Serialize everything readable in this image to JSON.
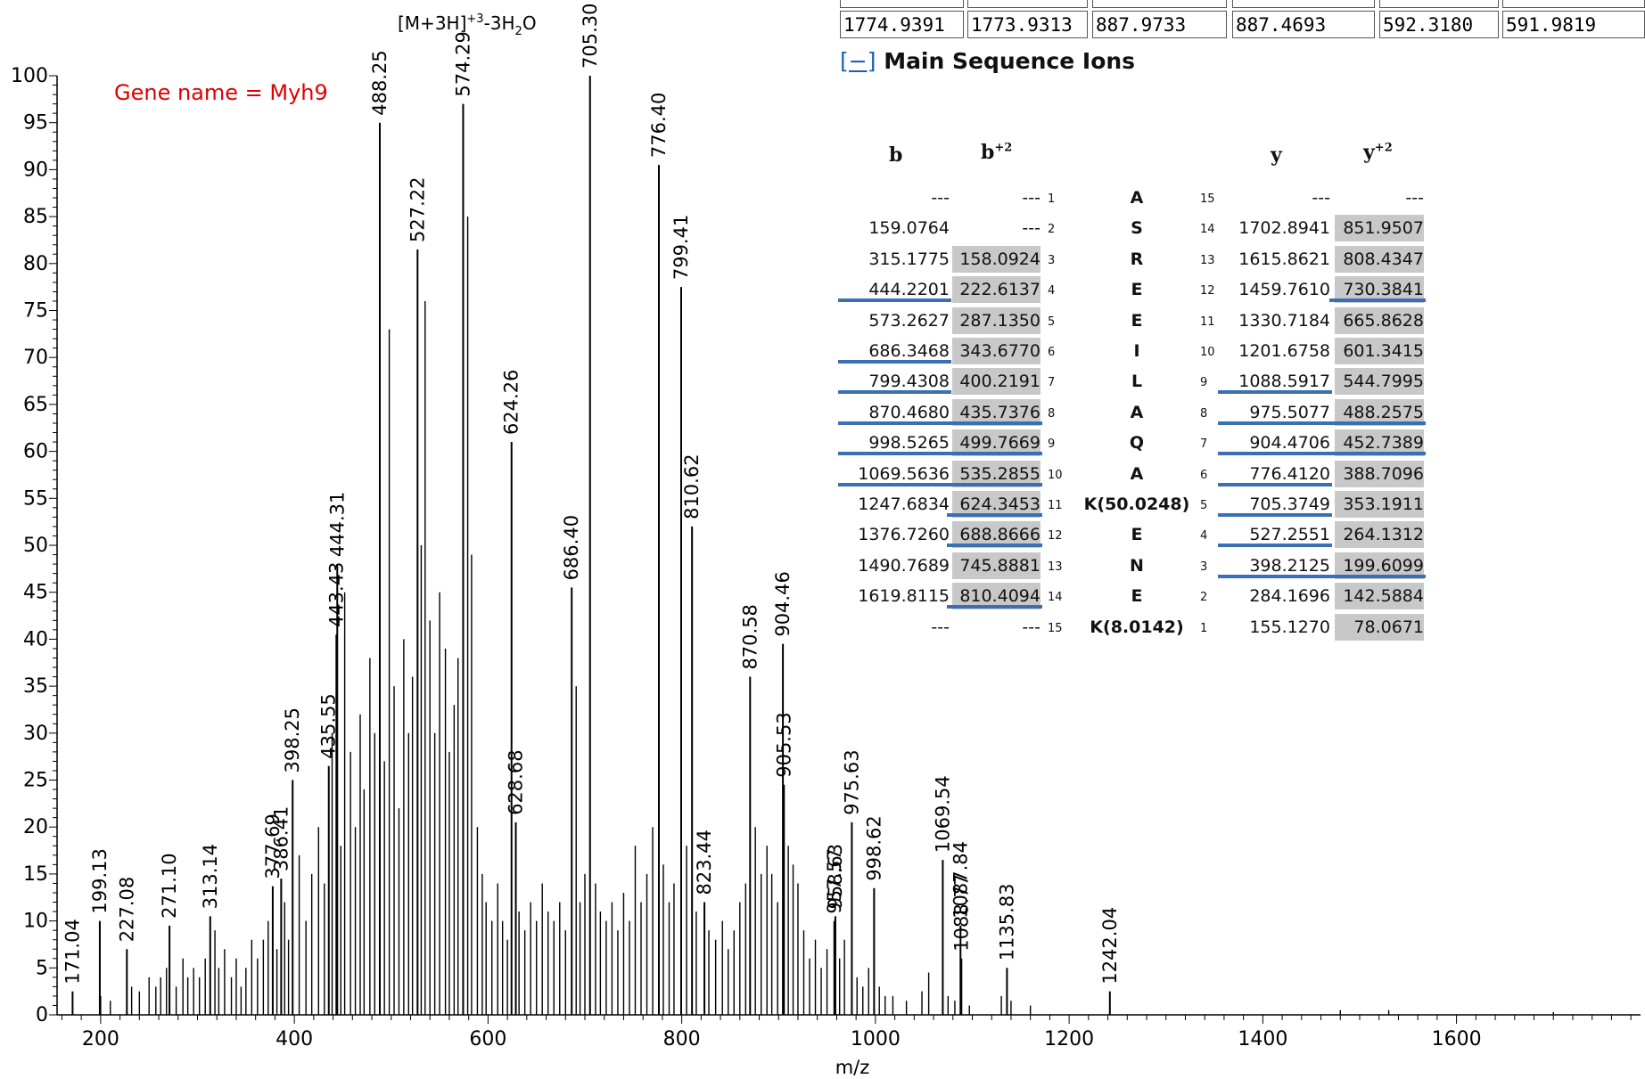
{
  "mass_strip": [
    "1774.9391",
    "1773.9313",
    "887.9733",
    "887.4693",
    "592.3180",
    "591.9819"
  ],
  "section": {
    "toggle": "[−]",
    "title": "Main Sequence Ions"
  },
  "ion_table": {
    "headers": {
      "b": "b",
      "b2": "b",
      "b2_sup": "+2",
      "y": "y",
      "y2": "y",
      "y2_sup": "+2"
    },
    "rows": [
      {
        "b": "---",
        "b2": "---",
        "i": "1",
        "aa": "A",
        "j": "15",
        "y": "---",
        "y2": "---",
        "b_u": false,
        "b2_u": false,
        "y_u": false,
        "y2_u": false,
        "b2_hl": false,
        "y2_hl": false
      },
      {
        "b": "159.0764",
        "b2": "---",
        "i": "2",
        "aa": "S",
        "j": "14",
        "y": "1702.8941",
        "y2": "851.9507",
        "b_u": false,
        "b2_u": false,
        "y_u": false,
        "y2_u": false,
        "b2_hl": false,
        "y2_hl": true
      },
      {
        "b": "315.1775",
        "b2": "158.0924",
        "i": "3",
        "aa": "R",
        "j": "13",
        "y": "1615.8621",
        "y2": "808.4347",
        "b_u": false,
        "b2_u": false,
        "y_u": false,
        "y2_u": false,
        "b2_hl": true,
        "y2_hl": true
      },
      {
        "b": "444.2201",
        "b2": "222.6137",
        "i": "4",
        "aa": "E",
        "j": "12",
        "y": "1459.7610",
        "y2": "730.3841",
        "b_u": true,
        "b2_u": false,
        "y_u": false,
        "y2_u": true,
        "b2_hl": true,
        "y2_hl": true
      },
      {
        "b": "573.2627",
        "b2": "287.1350",
        "i": "5",
        "aa": "E",
        "j": "11",
        "y": "1330.7184",
        "y2": "665.8628",
        "b_u": false,
        "b2_u": false,
        "y_u": false,
        "y2_u": false,
        "b2_hl": true,
        "y2_hl": true
      },
      {
        "b": "686.3468",
        "b2": "343.6770",
        "i": "6",
        "aa": "I",
        "j": "10",
        "y": "1201.6758",
        "y2": "601.3415",
        "b_u": true,
        "b2_u": false,
        "y_u": false,
        "y2_u": false,
        "b2_hl": true,
        "y2_hl": true
      },
      {
        "b": "799.4308",
        "b2": "400.2191",
        "i": "7",
        "aa": "L",
        "j": "9",
        "y": "1088.5917",
        "y2": "544.7995",
        "b_u": true,
        "b2_u": false,
        "y_u": true,
        "y2_u": false,
        "b2_hl": true,
        "y2_hl": true
      },
      {
        "b": "870.4680",
        "b2": "435.7376",
        "i": "8",
        "aa": "A",
        "j": "8",
        "y": "975.5077",
        "y2": "488.2575",
        "b_u": true,
        "b2_u": true,
        "y_u": true,
        "y2_u": true,
        "b2_hl": true,
        "y2_hl": true
      },
      {
        "b": "998.5265",
        "b2": "499.7669",
        "i": "9",
        "aa": "Q",
        "j": "7",
        "y": "904.4706",
        "y2": "452.7389",
        "b_u": true,
        "b2_u": true,
        "y_u": true,
        "y2_u": true,
        "b2_hl": true,
        "y2_hl": true
      },
      {
        "b": "1069.5636",
        "b2": "535.2855",
        "i": "10",
        "aa": "A",
        "j": "6",
        "y": "776.4120",
        "y2": "388.7096",
        "b_u": true,
        "b2_u": true,
        "y_u": true,
        "y2_u": false,
        "b2_hl": true,
        "y2_hl": true
      },
      {
        "b": "1247.6834",
        "b2": "624.3453",
        "i": "11",
        "aa": "K(50.0248)",
        "j": "5",
        "y": "705.3749",
        "y2": "353.1911",
        "b_u": false,
        "b2_u": true,
        "y_u": true,
        "y2_u": false,
        "b2_hl": true,
        "y2_hl": true
      },
      {
        "b": "1376.7260",
        "b2": "688.8666",
        "i": "12",
        "aa": "E",
        "j": "4",
        "y": "527.2551",
        "y2": "264.1312",
        "b_u": false,
        "b2_u": true,
        "y_u": true,
        "y2_u": false,
        "b2_hl": true,
        "y2_hl": true
      },
      {
        "b": "1490.7689",
        "b2": "745.8881",
        "i": "13",
        "aa": "N",
        "j": "3",
        "y": "398.2125",
        "y2": "199.6099",
        "b_u": false,
        "b2_u": false,
        "y_u": true,
        "y2_u": true,
        "b2_hl": true,
        "y2_hl": true
      },
      {
        "b": "1619.8115",
        "b2": "810.4094",
        "i": "14",
        "aa": "E",
        "j": "2",
        "y": "284.1696",
        "y2": "142.5884",
        "b_u": false,
        "b2_u": true,
        "y_u": false,
        "y2_u": false,
        "b2_hl": true,
        "y2_hl": true
      },
      {
        "b": "---",
        "b2": "---",
        "i": "15",
        "aa": "K(8.0142)",
        "j": "1",
        "y": "155.1270",
        "y2": "78.0671",
        "b_u": false,
        "b2_u": false,
        "y_u": false,
        "y2_u": false,
        "b2_hl": false,
        "y2_hl": true
      }
    ]
  },
  "chart_data": {
    "type": "bar",
    "xlabel": "m/z",
    "ylabel": "",
    "xlim": [
      155,
      1790
    ],
    "ylim": [
      0,
      100
    ],
    "x_ticks": [
      200,
      400,
      600,
      800,
      1000,
      1200,
      1400,
      1600
    ],
    "y_ticks": [
      0,
      5,
      10,
      15,
      20,
      25,
      30,
      35,
      40,
      45,
      50,
      55,
      60,
      65,
      70,
      75,
      80,
      85,
      90,
      95,
      100
    ],
    "annotation_gene": "Gene name = Myh9",
    "annotation_ion": "[M+3H]+3-3H2O",
    "labeled_peaks": [
      {
        "mz": 171.04,
        "intensity": 2.5,
        "label": "171.04"
      },
      {
        "mz": 199.13,
        "intensity": 10.0,
        "label": "199.13"
      },
      {
        "mz": 227.08,
        "intensity": 7.0,
        "label": "227.08"
      },
      {
        "mz": 271.1,
        "intensity": 9.5,
        "label": "271.10"
      },
      {
        "mz": 313.14,
        "intensity": 10.5,
        "label": "313.14"
      },
      {
        "mz": 377.69,
        "intensity": 13.7,
        "label": "377.69"
      },
      {
        "mz": 386.41,
        "intensity": 14.5,
        "label": "386.41"
      },
      {
        "mz": 398.25,
        "intensity": 25.0,
        "label": "398.25"
      },
      {
        "mz": 435.55,
        "intensity": 26.5,
        "label": "435.55"
      },
      {
        "mz": 443.43,
        "intensity": 40.5,
        "label": "443.43"
      },
      {
        "mz": 444.31,
        "intensity": 48.0,
        "label": "444.31"
      },
      {
        "mz": 488.25,
        "intensity": 95.0,
        "label": "488.25"
      },
      {
        "mz": 527.22,
        "intensity": 81.5,
        "label": "527.22"
      },
      {
        "mz": 574.29,
        "intensity": 97.0,
        "label": "574.29"
      },
      {
        "mz": 624.26,
        "intensity": 61.0,
        "label": "624.26"
      },
      {
        "mz": 628.68,
        "intensity": 20.5,
        "label": "628.68"
      },
      {
        "mz": 686.4,
        "intensity": 45.5,
        "label": "686.40"
      },
      {
        "mz": 705.3,
        "intensity": 100.0,
        "label": "705.30"
      },
      {
        "mz": 776.4,
        "intensity": 90.5,
        "label": "776.40"
      },
      {
        "mz": 799.41,
        "intensity": 77.5,
        "label": "799.41"
      },
      {
        "mz": 810.62,
        "intensity": 52.0,
        "label": "810.62"
      },
      {
        "mz": 823.44,
        "intensity": 12.0,
        "label": "823.44"
      },
      {
        "mz": 870.58,
        "intensity": 36.0,
        "label": "870.58"
      },
      {
        "mz": 904.46,
        "intensity": 39.5,
        "label": "904.46"
      },
      {
        "mz": 905.53,
        "intensity": 24.5,
        "label": "905.53"
      },
      {
        "mz": 957.57,
        "intensity": 10.0,
        "label": "957.57"
      },
      {
        "mz": 958.63,
        "intensity": 10.5,
        "label": "958.63"
      },
      {
        "mz": 975.63,
        "intensity": 20.5,
        "label": "975.63"
      },
      {
        "mz": 998.62,
        "intensity": 13.5,
        "label": "998.62"
      },
      {
        "mz": 1069.54,
        "intensity": 16.5,
        "label": "1069.54"
      },
      {
        "mz": 1087.84,
        "intensity": 9.5,
        "label": "1087.84"
      },
      {
        "mz": 1088.77,
        "intensity": 6.0,
        "label": "1088.77"
      },
      {
        "mz": 1135.83,
        "intensity": 5.0,
        "label": "1135.83"
      },
      {
        "mz": 1242.04,
        "intensity": 2.5,
        "label": "1242.04"
      }
    ],
    "unlabeled_peaks": [
      [
        200,
        2
      ],
      [
        210,
        1.5
      ],
      [
        232,
        3
      ],
      [
        240,
        2.5
      ],
      [
        250,
        4
      ],
      [
        257,
        3
      ],
      [
        262,
        4
      ],
      [
        268,
        5
      ],
      [
        278,
        3
      ],
      [
        285,
        6
      ],
      [
        290,
        4
      ],
      [
        296,
        5
      ],
      [
        302,
        4
      ],
      [
        308,
        6
      ],
      [
        318,
        9
      ],
      [
        322,
        5
      ],
      [
        328,
        7
      ],
      [
        335,
        4
      ],
      [
        340,
        6
      ],
      [
        345,
        3
      ],
      [
        350,
        5
      ],
      [
        356,
        8
      ],
      [
        362,
        6
      ],
      [
        368,
        8
      ],
      [
        373,
        10
      ],
      [
        382,
        7
      ],
      [
        390,
        12
      ],
      [
        394,
        8
      ],
      [
        405,
        17
      ],
      [
        412,
        10
      ],
      [
        418,
        15
      ],
      [
        425,
        20
      ],
      [
        431,
        14
      ],
      [
        439,
        30
      ],
      [
        448,
        18
      ],
      [
        452,
        45
      ],
      [
        458,
        28
      ],
      [
        463,
        20
      ],
      [
        468,
        32
      ],
      [
        472,
        24
      ],
      [
        478,
        38
      ],
      [
        483,
        30
      ],
      [
        493,
        27
      ],
      [
        498,
        73
      ],
      [
        503,
        35
      ],
      [
        508,
        22
      ],
      [
        513,
        40
      ],
      [
        518,
        30
      ],
      [
        522,
        36
      ],
      [
        531,
        50
      ],
      [
        535,
        76
      ],
      [
        540,
        42
      ],
      [
        545,
        30
      ],
      [
        550,
        45
      ],
      [
        556,
        39
      ],
      [
        560,
        28
      ],
      [
        565,
        33
      ],
      [
        569,
        38
      ],
      [
        579,
        85
      ],
      [
        583,
        49
      ],
      [
        589,
        20
      ],
      [
        594,
        15
      ],
      [
        598,
        12
      ],
      [
        604,
        10
      ],
      [
        610,
        14
      ],
      [
        615,
        10
      ],
      [
        620,
        8
      ],
      [
        632,
        11
      ],
      [
        638,
        9
      ],
      [
        644,
        12
      ],
      [
        650,
        10
      ],
      [
        656,
        14
      ],
      [
        662,
        11
      ],
      [
        668,
        10
      ],
      [
        674,
        12
      ],
      [
        680,
        9
      ],
      [
        691,
        35
      ],
      [
        695,
        12
      ],
      [
        700,
        15
      ],
      [
        711,
        14
      ],
      [
        716,
        11
      ],
      [
        722,
        10
      ],
      [
        728,
        12
      ],
      [
        734,
        9
      ],
      [
        740,
        13
      ],
      [
        746,
        10
      ],
      [
        752,
        18
      ],
      [
        758,
        12
      ],
      [
        764,
        15
      ],
      [
        770,
        20
      ],
      [
        781,
        16
      ],
      [
        787,
        12
      ],
      [
        792,
        14
      ],
      [
        805,
        18
      ],
      [
        815,
        11
      ],
      [
        828,
        9
      ],
      [
        835,
        8
      ],
      [
        842,
        10
      ],
      [
        848,
        7
      ],
      [
        854,
        9
      ],
      [
        860,
        12
      ],
      [
        866,
        14
      ],
      [
        876,
        20
      ],
      [
        882,
        15
      ],
      [
        888,
        18
      ],
      [
        893,
        15
      ],
      [
        899,
        12
      ],
      [
        910,
        18
      ],
      [
        915,
        16
      ],
      [
        920,
        14
      ],
      [
        926,
        9
      ],
      [
        932,
        6
      ],
      [
        938,
        8
      ],
      [
        944,
        5
      ],
      [
        950,
        7
      ],
      [
        963,
        6
      ],
      [
        968,
        8
      ],
      [
        981,
        4
      ],
      [
        987,
        3
      ],
      [
        993,
        5
      ],
      [
        1004,
        3
      ],
      [
        1010,
        2
      ],
      [
        1018,
        2
      ],
      [
        1032,
        1.5
      ],
      [
        1048,
        2.5
      ],
      [
        1055,
        4.5
      ],
      [
        1075,
        2
      ],
      [
        1082,
        1.5
      ],
      [
        1097,
        1
      ],
      [
        1130,
        2
      ],
      [
        1140,
        1.5
      ],
      [
        1160,
        1
      ],
      [
        1480,
        0.5
      ],
      [
        1530,
        0.5
      ],
      [
        1700,
        0.3
      ]
    ]
  }
}
